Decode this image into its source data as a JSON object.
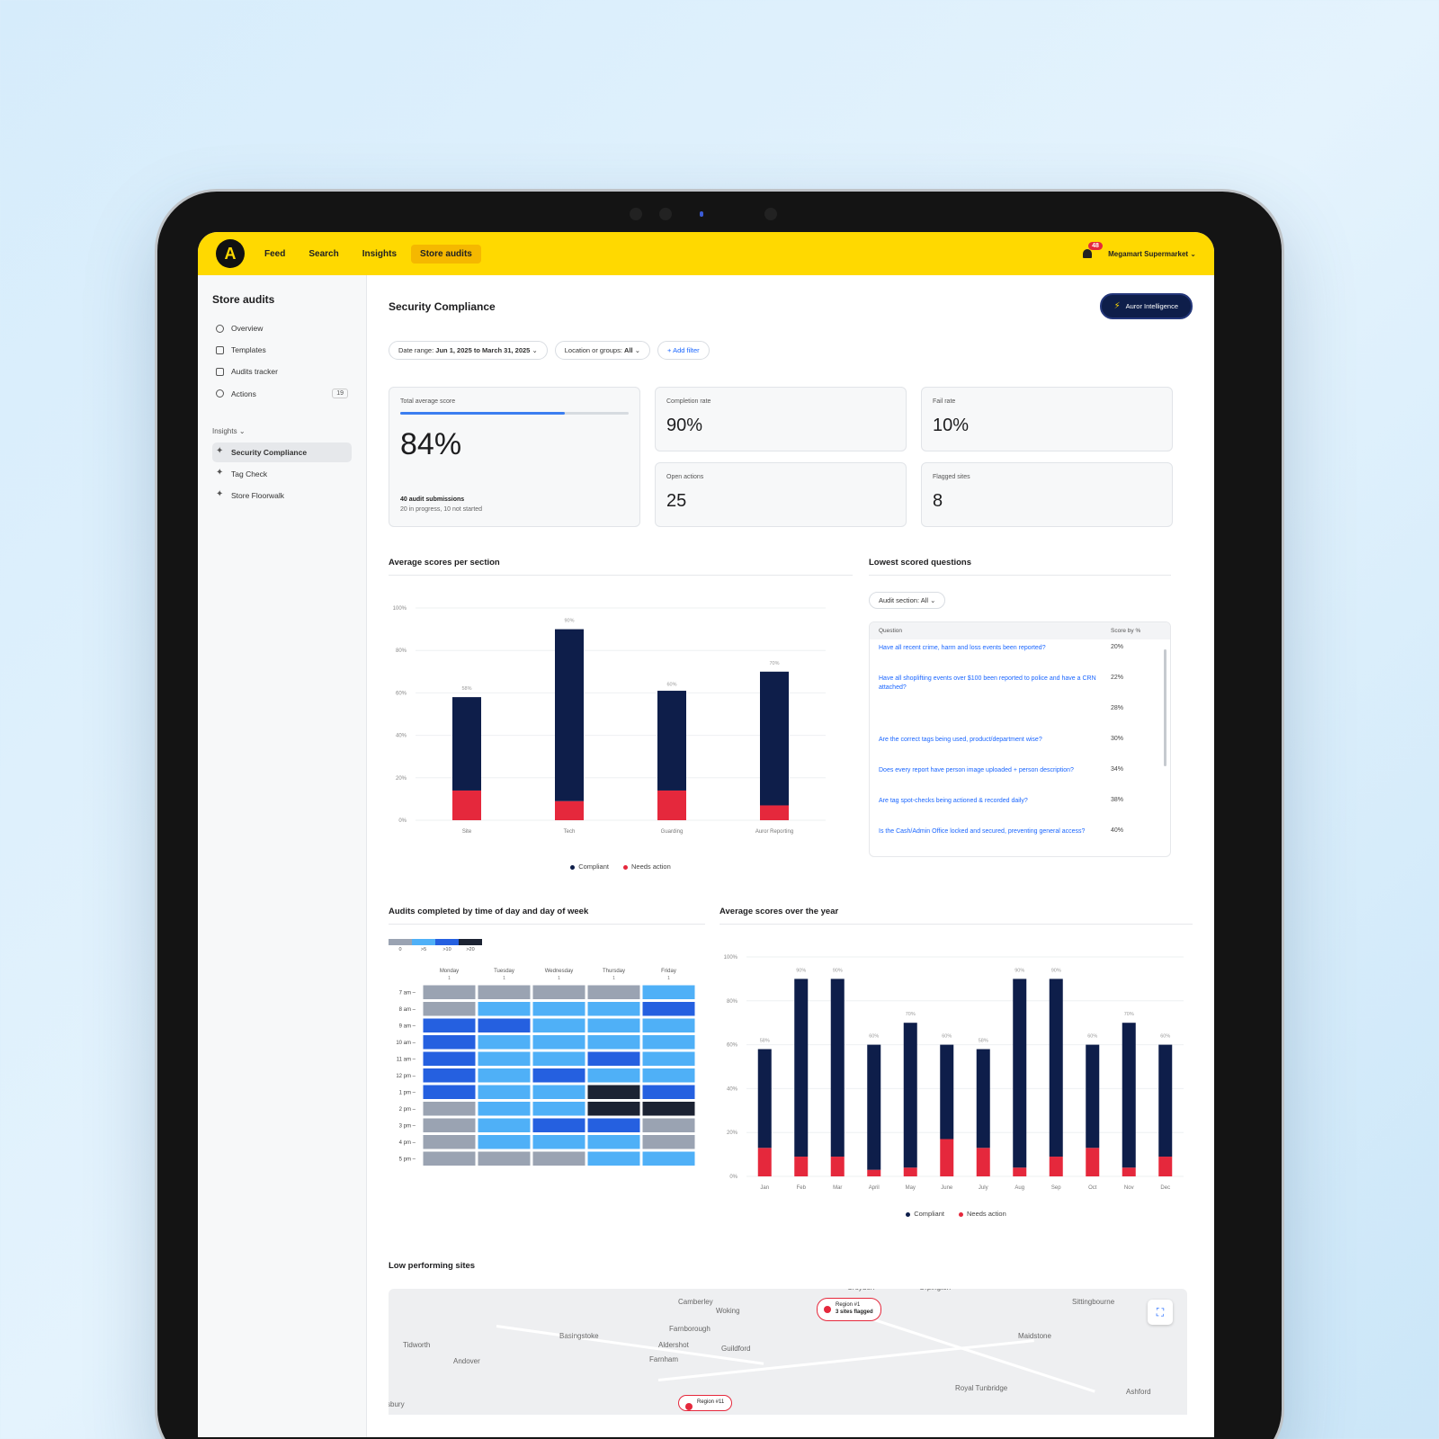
{
  "topbar": {
    "logo": "A",
    "nav": [
      "Feed",
      "Search",
      "Insights",
      "Store audits"
    ],
    "notifications": "48",
    "org": "Megamart Supermarket"
  },
  "sidebar": {
    "title": "Store audits",
    "items": [
      {
        "label": "Overview",
        "icon": "home-icon"
      },
      {
        "label": "Templates",
        "icon": "pencil-icon"
      },
      {
        "label": "Audits tracker",
        "icon": "clipboard-icon"
      },
      {
        "label": "Actions",
        "icon": "check-circle-icon",
        "count": "19"
      }
    ],
    "group": "Insights",
    "insights": [
      {
        "label": "Security Compliance",
        "icon": "sparkle-icon"
      },
      {
        "label": "Tag Check",
        "icon": "sparkle-icon"
      },
      {
        "label": "Store Floorwalk",
        "icon": "sparkle-icon"
      }
    ]
  },
  "header": {
    "title": "Security Compliance",
    "ai_button": "Auror Intelligence"
  },
  "filters": {
    "date_label": "Date range:",
    "date_value": "Jun 1, 2025 to March 31, 2025",
    "location_label": "Location or groups:",
    "location_value": "All",
    "add_filter": "+ Add filter"
  },
  "kpis": {
    "total": {
      "label": "Total average score",
      "value": "84%",
      "progress": 0.72,
      "sub1": "40 audit submissions",
      "sub2": "20 in progress, 10 not started"
    },
    "completion": {
      "label": "Completion rate",
      "value": "90%"
    },
    "fail": {
      "label": "Fail rate",
      "value": "10%"
    },
    "open": {
      "label": "Open actions",
      "value": "25"
    },
    "flagged": {
      "label": "Flagged sites",
      "value": "8"
    }
  },
  "section_chart": {
    "title": "Average scores per section",
    "legend": [
      "Compliant",
      "Needs action"
    ],
    "colors": {
      "compliant": "#0e1e4a",
      "needs": "#e5283c"
    }
  },
  "lowest": {
    "title": "Lowest scored questions",
    "dropdown": "Audit section: All",
    "col_question": "Question",
    "col_score": "Score by %",
    "rows": [
      {
        "q": "Have all recent crime, harm and loss events been reported?",
        "s": "20%"
      },
      {
        "q": "Have all shoplifting events over $100 been reported to police and have a CRN attached?",
        "s": "22%"
      },
      {
        "q": "",
        "s": "28%"
      },
      {
        "q": "Are the correct tags being used, product/department wise?",
        "s": "30%"
      },
      {
        "q": "Does every report have person image uploaded + person description?",
        "s": "34%"
      },
      {
        "q": "Are tag spot-checks being actioned & recorded daily?",
        "s": "38%"
      },
      {
        "q": "Is the Cash/Admin Office locked and secured, preventing general access?",
        "s": "40%"
      }
    ]
  },
  "heatmap": {
    "title": "Audits completed by time of day and day of week",
    "legend_labels": [
      "0",
      ">5",
      ">10",
      ">20"
    ],
    "legend_colors": [
      "#9aa3b2",
      "#4fb0f7",
      "#2560e0",
      "#1c2333"
    ],
    "days": [
      "Monday",
      "Tuesday",
      "Wednesday",
      "Thursday",
      "Friday"
    ],
    "day_counts": [
      "1",
      "1",
      "1",
      "1",
      "1"
    ],
    "hours": [
      "7 am",
      "8 am",
      "9 am",
      "10 am",
      "11 am",
      "12 pm",
      "1 pm",
      "2 pm",
      "3 pm",
      "4 pm",
      "5 pm"
    ],
    "levels": [
      [
        0,
        0,
        0,
        0,
        1
      ],
      [
        0,
        1,
        1,
        1,
        2
      ],
      [
        2,
        2,
        1,
        1,
        1
      ],
      [
        2,
        1,
        1,
        1,
        1
      ],
      [
        2,
        1,
        1,
        2,
        1
      ],
      [
        2,
        1,
        2,
        1,
        1
      ],
      [
        2,
        1,
        1,
        3,
        2
      ],
      [
        0,
        1,
        1,
        3,
        3
      ],
      [
        0,
        1,
        2,
        2,
        0
      ],
      [
        0,
        1,
        1,
        1,
        0
      ],
      [
        0,
        0,
        0,
        1,
        1
      ]
    ]
  },
  "year_chart": {
    "title": "Average scores over the year",
    "legend": [
      "Compliant",
      "Needs action"
    ]
  },
  "map": {
    "title": "Low performing sites",
    "towns": [
      {
        "name": "Camberley"
      },
      {
        "name": "Woking"
      },
      {
        "name": "Farnborough"
      },
      {
        "name": "Basingstoke"
      },
      {
        "name": "Aldershot"
      },
      {
        "name": "Guildford"
      },
      {
        "name": "Farnham"
      },
      {
        "name": "Tidworth"
      },
      {
        "name": "Andover"
      },
      {
        "name": "Maidstone"
      },
      {
        "name": "Sittingbourne"
      },
      {
        "name": "Royal Tunbridge"
      },
      {
        "name": "Ashford"
      },
      {
        "name": "Croydon"
      },
      {
        "name": "Orpington"
      },
      {
        "name": "sbury"
      }
    ],
    "pins": [
      {
        "title": "Region #1",
        "sub": "3 sites flagged"
      },
      {
        "title": "Region #11",
        "sub": ""
      }
    ]
  },
  "chart_data": [
    {
      "type": "bar",
      "title": "Average scores per section",
      "categories": [
        "Site",
        "Tech",
        "Guarding",
        "Auror Reporting"
      ],
      "series": [
        {
          "name": "Compliant",
          "values": [
            44,
            81,
            47,
            63
          ]
        },
        {
          "name": "Needs action",
          "values": [
            14,
            9,
            14,
            7
          ]
        }
      ],
      "totals_labels": [
        "58%",
        "90%",
        "60%",
        "70%"
      ],
      "totals": [
        58,
        90,
        60,
        70
      ],
      "yticks": [
        "0%",
        "20%",
        "40%",
        "60%",
        "80%",
        "100%"
      ],
      "ylim": [
        0,
        100
      ]
    },
    {
      "type": "bar",
      "title": "Average scores over the year",
      "categories": [
        "Jan",
        "Feb",
        "Mar",
        "April",
        "May",
        "June",
        "July",
        "Aug",
        "Sep",
        "Oct",
        "Nov",
        "Dec"
      ],
      "series": [
        {
          "name": "Compliant",
          "values": [
            45,
            81,
            81,
            57,
            66,
            43,
            45,
            86,
            81,
            47,
            66,
            51
          ]
        },
        {
          "name": "Needs action",
          "values": [
            13,
            9,
            9,
            3,
            4,
            17,
            13,
            4,
            9,
            13,
            4,
            9
          ]
        }
      ],
      "totals_labels": [
        "58%",
        "90%",
        "90%",
        "60%",
        "70%",
        "60%",
        "58%",
        "90%",
        "90%",
        "60%",
        "70%",
        "60%"
      ],
      "totals": [
        58,
        90,
        90,
        60,
        70,
        60,
        58,
        90,
        90,
        60,
        70,
        60
      ],
      "yticks": [
        "0%",
        "20%",
        "40%",
        "60%",
        "80%",
        "100%"
      ],
      "ylim": [
        0,
        100
      ]
    }
  ]
}
